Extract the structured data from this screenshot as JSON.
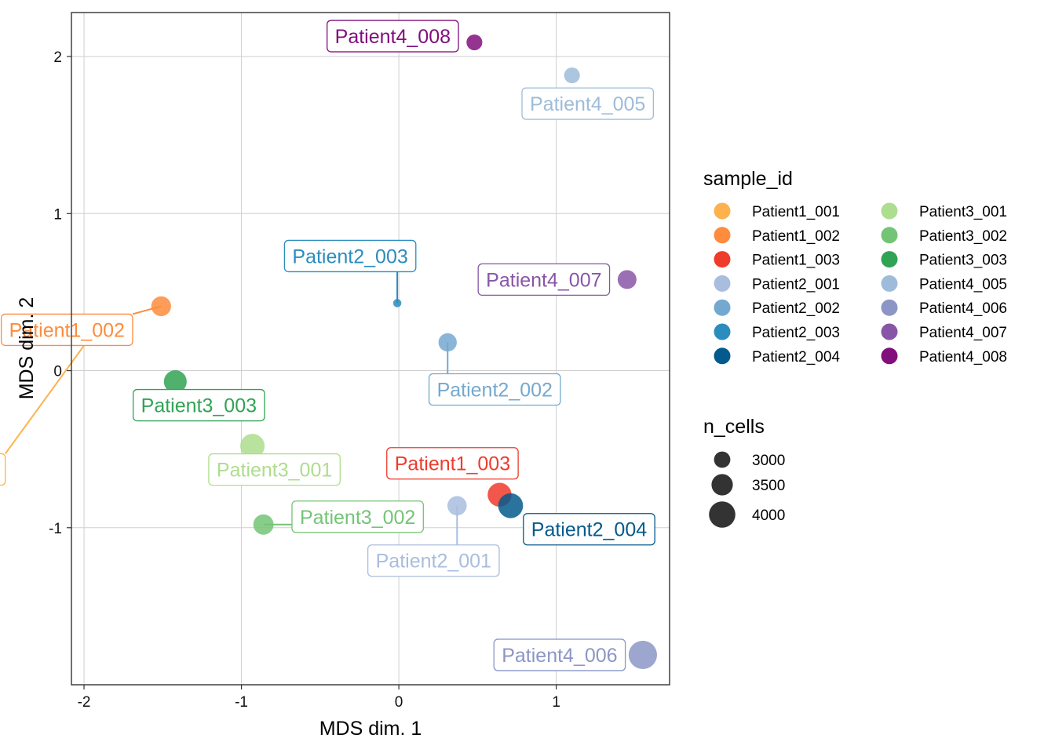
{
  "chart_data": {
    "type": "scatter",
    "xlabel": "MDS dim. 1",
    "ylabel": "MDS dim. 2",
    "xlim": [
      -2.08,
      1.72
    ],
    "ylim": [
      -2.0,
      2.28
    ],
    "x_ticks": [
      -2,
      -1,
      0,
      1
    ],
    "y_ticks": [
      -1,
      0,
      1,
      2
    ],
    "x_tick_labels": [
      "-2",
      "-1",
      "0",
      "1"
    ],
    "y_tick_labels": [
      "-1",
      "0",
      "1",
      "2"
    ],
    "grid": true,
    "legend_position": "right",
    "points": [
      {
        "label": "Patient1_001",
        "x": -1.92,
        "y": 0.27,
        "n_cells": 3700,
        "color": "#FDB24D"
      },
      {
        "label": "Patient1_002",
        "x": -1.51,
        "y": 0.41,
        "n_cells": 3350,
        "color": "#FD8C3C"
      },
      {
        "label": "Patient1_003",
        "x": 0.64,
        "y": -0.79,
        "n_cells": 3750,
        "color": "#EF3B2C"
      },
      {
        "label": "Patient2_001",
        "x": 0.37,
        "y": -0.86,
        "n_cells": 3300,
        "color": "#A9BDDE"
      },
      {
        "label": "Patient2_002",
        "x": 0.31,
        "y": 0.18,
        "n_cells": 3200,
        "color": "#74A9CF"
      },
      {
        "label": "Patient2_003",
        "x": -0.01,
        "y": 0.43,
        "n_cells": 2200,
        "color": "#2B8CBE"
      },
      {
        "label": "Patient2_004",
        "x": 0.71,
        "y": -0.86,
        "n_cells": 3850,
        "color": "#045A8D"
      },
      {
        "label": "Patient3_001",
        "x": -0.93,
        "y": -0.48,
        "n_cells": 3800,
        "color": "#ADDD8E"
      },
      {
        "label": "Patient3_002",
        "x": -0.86,
        "y": -0.98,
        "n_cells": 3400,
        "color": "#74C476"
      },
      {
        "label": "Patient3_003",
        "x": -1.42,
        "y": -0.07,
        "n_cells": 3650,
        "color": "#31A354"
      },
      {
        "label": "Patient4_005",
        "x": 1.1,
        "y": 1.88,
        "n_cells": 2950,
        "color": "#9EBCDA"
      },
      {
        "label": "Patient4_006",
        "x": 1.55,
        "y": -1.81,
        "n_cells": 4200,
        "color": "#8C96C6"
      },
      {
        "label": "Patient4_007",
        "x": 1.45,
        "y": 0.58,
        "n_cells": 3250,
        "color": "#8856A7"
      },
      {
        "label": "Patient4_008",
        "x": 0.48,
        "y": 2.09,
        "n_cells": 2950,
        "color": "#810F7C"
      }
    ],
    "legend_color": {
      "title": "sample_id",
      "entries": [
        {
          "label": "Patient1_001",
          "color": "#FDB24D"
        },
        {
          "label": "Patient1_002",
          "color": "#FD8C3C"
        },
        {
          "label": "Patient1_003",
          "color": "#EF3B2C"
        },
        {
          "label": "Patient2_001",
          "color": "#A9BDDE"
        },
        {
          "label": "Patient2_002",
          "color": "#74A9CF"
        },
        {
          "label": "Patient2_003",
          "color": "#2B8CBE"
        },
        {
          "label": "Patient2_004",
          "color": "#045A8D"
        },
        {
          "label": "Patient3_001",
          "color": "#ADDD8E"
        },
        {
          "label": "Patient3_002",
          "color": "#74C476"
        },
        {
          "label": "Patient3_003",
          "color": "#31A354"
        },
        {
          "label": "Patient4_005",
          "color": "#9EBCDA"
        },
        {
          "label": "Patient4_006",
          "color": "#8C96C6"
        },
        {
          "label": "Patient4_007",
          "color": "#8856A7"
        },
        {
          "label": "Patient4_008",
          "color": "#810F7C"
        }
      ]
    },
    "legend_size": {
      "title": "n_cells",
      "entries": [
        {
          "label": "3000",
          "value": 3000
        },
        {
          "label": "3500",
          "value": 3500
        },
        {
          "label": "4000",
          "value": 4000
        }
      ]
    }
  }
}
